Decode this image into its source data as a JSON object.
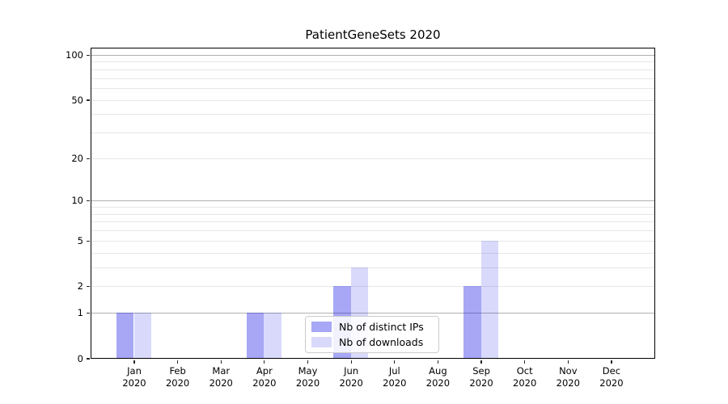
{
  "chart_data": {
    "type": "bar",
    "title": "PatientGeneSets 2020",
    "months": [
      "Jan",
      "Feb",
      "Mar",
      "Apr",
      "May",
      "Jun",
      "Jul",
      "Aug",
      "Sep",
      "Oct",
      "Nov",
      "Dec"
    ],
    "year": "2020",
    "series": [
      {
        "name": "Nb of distinct IPs",
        "color": "#0000e6",
        "alpha": 0.345,
        "color_solid": "#a7a7f6",
        "values": [
          1,
          0,
          0,
          1,
          0,
          2,
          0,
          0,
          2,
          0,
          0,
          0
        ]
      },
      {
        "name": "Nb of downloads",
        "color": "#0000e6",
        "alpha": 0.15,
        "color_solid": "#d9d9fa",
        "values": [
          1,
          0,
          0,
          1,
          0,
          3,
          0,
          0,
          5,
          0,
          0,
          0
        ]
      }
    ],
    "y_axis": {
      "scale": "log10(1+x)",
      "tick_labels": [
        0,
        1,
        2,
        5,
        10,
        20,
        50,
        100
      ],
      "major_gridlines": [
        1,
        10,
        100
      ],
      "minor_gridlines": [
        2,
        3,
        4,
        5,
        6,
        7,
        8,
        9,
        20,
        30,
        40,
        50,
        60,
        70,
        80,
        90
      ],
      "ylim": [
        0,
        111
      ]
    },
    "grid": true,
    "legend_position": "lower center",
    "colors": {
      "major_grid": "#b0b0b0",
      "spine": "#000000",
      "text": "#000000"
    }
  }
}
